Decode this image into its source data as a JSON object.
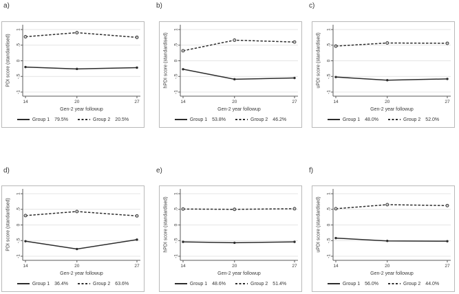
{
  "colors": {
    "line": "#2b2b2b",
    "grid": "#dcdcdc",
    "axis": "#5a5a5a",
    "box_border": "#b8b8b8",
    "marker_fill": "#c9c9c9",
    "text": "#3a3a3a",
    "background": "#ffffff"
  },
  "chart_data": [
    {
      "type": "line",
      "panel_label": "a)",
      "xlabel": "Gen-2 year followup",
      "ylabel": "PDI score (standardised)",
      "x": [
        14,
        20,
        27
      ],
      "x_tick_labels": [
        "14",
        "20",
        "27"
      ],
      "y_ticks": [
        -1,
        -0.5,
        0,
        0.5,
        1
      ],
      "y_tick_labels": [
        "-1",
        "-.5",
        "0",
        ".5",
        "1"
      ],
      "ylim": [
        -1.2,
        1.2
      ],
      "grid": true,
      "legend_position": "bottom",
      "series": [
        {
          "name": "Group 1",
          "share": "79.5%",
          "line_style": "solid",
          "marker": "filled-circle",
          "values": [
            -0.2,
            -0.26,
            -0.22
          ]
        },
        {
          "name": "Group 2",
          "share": "20.5%",
          "line_style": "dashed",
          "marker": "hollow-circle",
          "values": [
            0.77,
            0.9,
            0.75
          ]
        }
      ]
    },
    {
      "type": "line",
      "panel_label": "b)",
      "xlabel": "Gen-2 year followup",
      "ylabel": "hPDI score (standardised)",
      "x": [
        14,
        20,
        27
      ],
      "x_tick_labels": [
        "14",
        "20",
        "27"
      ],
      "y_ticks": [
        -1,
        -0.5,
        0,
        0.5,
        1
      ],
      "y_tick_labels": [
        "-1",
        "-.5",
        "0",
        ".5",
        "1"
      ],
      "ylim": [
        -1.2,
        1.2
      ],
      "grid": true,
      "legend_position": "bottom",
      "series": [
        {
          "name": "Group 1",
          "share": "53.8%",
          "line_style": "solid",
          "marker": "filled-circle",
          "values": [
            -0.27,
            -0.59,
            -0.55
          ]
        },
        {
          "name": "Group 2",
          "share": "46.2%",
          "line_style": "dashed",
          "marker": "hollow-circle",
          "values": [
            0.32,
            0.66,
            0.6
          ]
        }
      ]
    },
    {
      "type": "line",
      "panel_label": "c)",
      "xlabel": "Gen-2 year followup",
      "ylabel": "uPDI score (standardised)",
      "x": [
        14,
        20,
        27
      ],
      "x_tick_labels": [
        "14",
        "20",
        "27"
      ],
      "y_ticks": [
        -1,
        -0.5,
        0,
        0.5,
        1
      ],
      "y_tick_labels": [
        "-1",
        "-.5",
        "0",
        ".5",
        "1"
      ],
      "ylim": [
        -1.2,
        1.2
      ],
      "grid": true,
      "legend_position": "bottom",
      "series": [
        {
          "name": "Group 1",
          "share": "48.0%",
          "line_style": "solid",
          "marker": "filled-circle",
          "values": [
            -0.52,
            -0.62,
            -0.58
          ]
        },
        {
          "name": "Group 2",
          "share": "52.0%",
          "line_style": "dashed",
          "marker": "hollow-circle",
          "values": [
            0.47,
            0.57,
            0.56
          ]
        }
      ]
    },
    {
      "type": "line",
      "panel_label": "d)",
      "xlabel": "Gen-2 year followup",
      "ylabel": "PDI score (standardised)",
      "x": [
        14,
        20,
        27
      ],
      "x_tick_labels": [
        "14",
        "20",
        "27"
      ],
      "y_ticks": [
        -1,
        -0.5,
        0,
        0.5,
        1
      ],
      "y_tick_labels": [
        "-1",
        "-.5",
        "0",
        ".5",
        "1"
      ],
      "ylim": [
        -1.2,
        1.2
      ],
      "grid": true,
      "legend_position": "bottom",
      "series": [
        {
          "name": "Group 1",
          "share": "36.4%",
          "line_style": "solid",
          "marker": "filled-circle",
          "values": [
            -0.52,
            -0.77,
            -0.47
          ]
        },
        {
          "name": "Group 2",
          "share": "63.6%",
          "line_style": "dashed",
          "marker": "hollow-circle",
          "values": [
            0.3,
            0.43,
            0.29
          ]
        }
      ]
    },
    {
      "type": "line",
      "panel_label": "e)",
      "xlabel": "Gen-2 year followup",
      "ylabel": "hPDI score (standardised)",
      "x": [
        14,
        20,
        27
      ],
      "x_tick_labels": [
        "14",
        "20",
        "27"
      ],
      "y_ticks": [
        -1,
        -0.5,
        0,
        0.5,
        1
      ],
      "y_tick_labels": [
        "-1",
        "-.5",
        "0",
        ".5",
        "1"
      ],
      "ylim": [
        -1.2,
        1.2
      ],
      "grid": true,
      "legend_position": "bottom",
      "series": [
        {
          "name": "Group 1",
          "share": "48.6%",
          "line_style": "solid",
          "marker": "filled-circle",
          "values": [
            -0.54,
            -0.57,
            -0.54
          ]
        },
        {
          "name": "Group 2",
          "share": "51.4%",
          "line_style": "dashed",
          "marker": "hollow-circle",
          "values": [
            0.51,
            0.5,
            0.52
          ]
        }
      ]
    },
    {
      "type": "line",
      "panel_label": "f)",
      "xlabel": "Gen-2 year followup",
      "ylabel": "uPDI score (standardised)",
      "x": [
        14,
        20,
        27
      ],
      "x_tick_labels": [
        "14",
        "20",
        "27"
      ],
      "y_ticks": [
        -1,
        -0.5,
        0,
        0.5,
        1
      ],
      "y_tick_labels": [
        "-1",
        "-.5",
        "0",
        ".5",
        "1"
      ],
      "ylim": [
        -1.2,
        1.2
      ],
      "grid": true,
      "legend_position": "bottom",
      "series": [
        {
          "name": "Group 1",
          "share": "56.0%",
          "line_style": "solid",
          "marker": "filled-circle",
          "values": [
            -0.42,
            -0.51,
            -0.52
          ]
        },
        {
          "name": "Group 2",
          "share": "44.0%",
          "line_style": "dashed",
          "marker": "hollow-circle",
          "values": [
            0.52,
            0.65,
            0.62
          ]
        }
      ]
    }
  ]
}
